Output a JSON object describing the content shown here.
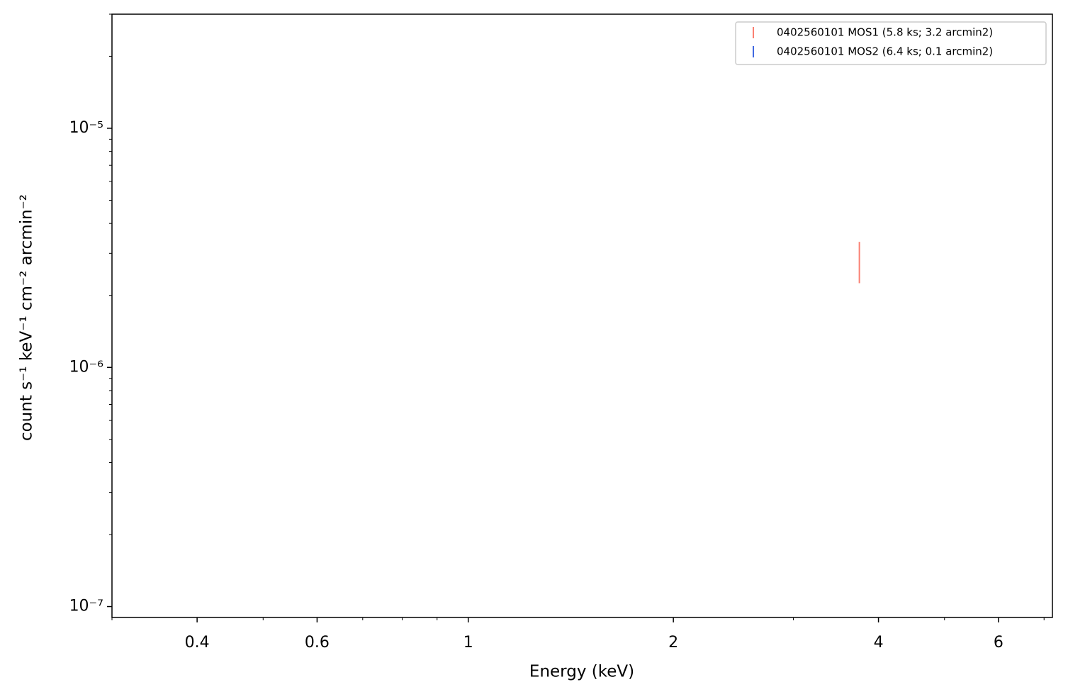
{
  "chart_data": {
    "type": "errorbar",
    "xlabel": "Energy (keV)",
    "ylabel": "count s⁻¹ keV⁻¹ cm⁻² arcmin⁻²",
    "xscale": "log",
    "yscale": "log",
    "xlim": [
      0.3,
      7.2
    ],
    "ylim": [
      9e-08,
      3e-05
    ],
    "xticks": [
      0.4,
      0.6,
      1,
      2,
      4,
      6
    ],
    "xminorticks": [
      0.3,
      0.5,
      0.7,
      0.8,
      0.9,
      3,
      5,
      7
    ],
    "yticks": [
      {
        "value": 1e-07,
        "label": "10⁻⁷"
      },
      {
        "value": 1e-06,
        "label": "10⁻⁶"
      },
      {
        "value": 1e-05,
        "label": "10⁻⁵"
      }
    ],
    "yminorticks": [
      2e-07,
      3e-07,
      4e-07,
      5e-07,
      6e-07,
      7e-07,
      8e-07,
      9e-07,
      2e-06,
      3e-06,
      4e-06,
      5e-06,
      6e-06,
      7e-06,
      8e-06,
      9e-06,
      2e-05,
      3e-05
    ],
    "legend": "upper right",
    "series": [
      {
        "name": "0402560101 MOS1 (5.8 ks; 3.2 arcmin2)",
        "color": "#fa8072",
        "x": [
          3.75
        ],
        "values": [
          2.8e-06
        ],
        "yerr": [
          5.5e-07
        ]
      },
      {
        "name": "0402560101 MOS2 (6.4 ks; 0.1 arcmin2)",
        "color": "#4169e1",
        "x": [],
        "values": [],
        "yerr": []
      }
    ]
  }
}
